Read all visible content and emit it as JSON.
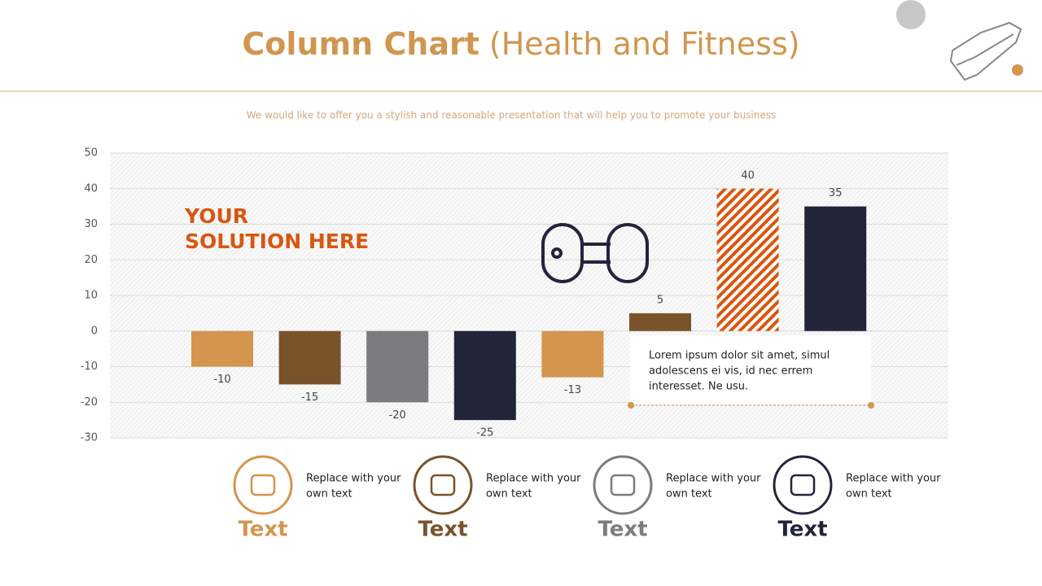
{
  "title": {
    "main": "Column Chart",
    "sub": "(Health and Fitness)"
  },
  "subtitle": "We would like to offer you a stylish and reasonable presentation that will help you to promote your business",
  "chart_data": {
    "type": "bar",
    "categories": [
      null,
      null,
      null,
      null,
      null,
      null,
      null,
      null
    ],
    "values": [
      -10,
      -15,
      -20,
      -25,
      -13,
      5,
      40,
      35
    ],
    "colors": [
      "#d4954f",
      "#7a532b",
      "#7c7b80",
      "#22253a",
      "#d4954f",
      "#7a532b",
      "#d9560f",
      "#22253a"
    ],
    "bar_styles": [
      "solid",
      "solid",
      "solid",
      "solid",
      "solid",
      "solid",
      "hatched",
      "solid"
    ],
    "ylim": [
      -30,
      50
    ],
    "yticks": [
      -30,
      -20,
      -10,
      0,
      10,
      20,
      30,
      40,
      50
    ],
    "grid": true
  },
  "annotation": [
    "YOUR",
    "SOLUTION HERE"
  ],
  "note": [
    "Lorem ipsum dolor sit amet, simul",
    "adolescens ei vis, id nec errem",
    "interesset. Ne usu."
  ],
  "features": [
    {
      "label": "Text",
      "text": [
        "Replace with your",
        "own text"
      ],
      "color": "#d4954f"
    },
    {
      "label": "Text",
      "text": [
        "Replace with your",
        "own text"
      ],
      "color": "#7a532b"
    },
    {
      "label": "Text",
      "text": [
        "Replace with your",
        "own text"
      ],
      "color": "#7c7b80"
    },
    {
      "label": "Text",
      "text": [
        "Replace with your",
        "own text"
      ],
      "color": "#22253a"
    }
  ]
}
